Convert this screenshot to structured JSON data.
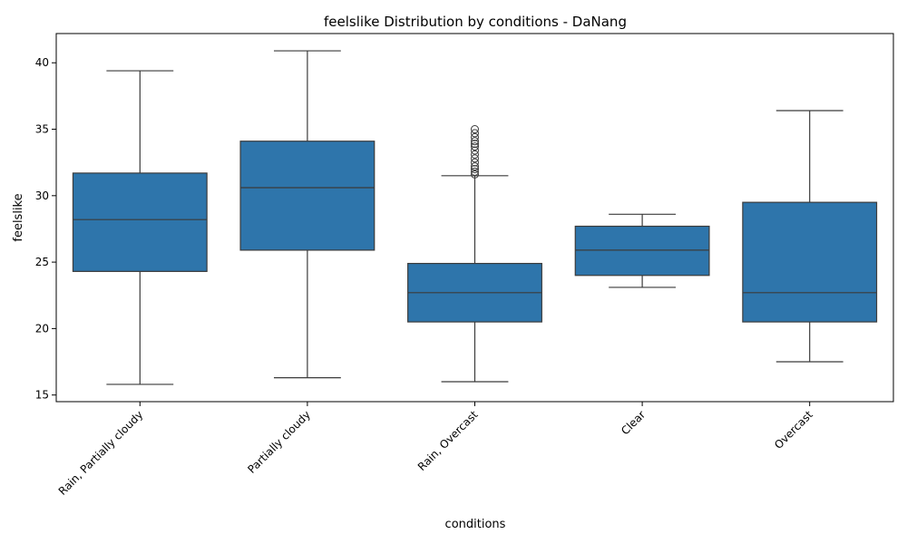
{
  "chart_data": {
    "type": "box",
    "title": "feelslike Distribution by conditions - DaNang",
    "xlabel": "conditions",
    "ylabel": "feelslike",
    "ylim": [
      14.5,
      42.2
    ],
    "yticks": [
      15,
      20,
      25,
      30,
      35,
      40
    ],
    "grid": false,
    "box_color": "#2e75ab",
    "line_color": "#3b3b3b",
    "categories": [
      "Rain, Partially cloudy",
      "Partially cloudy",
      "Rain, Overcast",
      "Clear",
      "Overcast"
    ],
    "boxes": [
      {
        "label": "Rain, Partially cloudy",
        "whislo": 15.8,
        "q1": 24.3,
        "med": 28.2,
        "q3": 31.7,
        "whishi": 39.4,
        "fliers": []
      },
      {
        "label": "Partially cloudy",
        "whislo": 16.3,
        "q1": 25.9,
        "med": 30.6,
        "q3": 34.1,
        "whishi": 40.9,
        "fliers": []
      },
      {
        "label": "Rain, Overcast",
        "whislo": 16.0,
        "q1": 20.5,
        "med": 22.7,
        "q3": 24.9,
        "whishi": 31.5,
        "fliers": [
          31.6,
          31.8,
          32.0,
          32.2,
          32.5,
          32.8,
          33.1,
          33.4,
          33.7,
          33.9,
          34.1,
          34.4,
          34.7,
          35.0
        ]
      },
      {
        "label": "Clear",
        "whislo": 23.1,
        "q1": 24.0,
        "med": 25.9,
        "q3": 27.7,
        "whishi": 28.6,
        "fliers": []
      },
      {
        "label": "Overcast",
        "whislo": 17.5,
        "q1": 20.5,
        "med": 22.7,
        "q3": 29.5,
        "whishi": 36.4,
        "fliers": []
      }
    ]
  }
}
